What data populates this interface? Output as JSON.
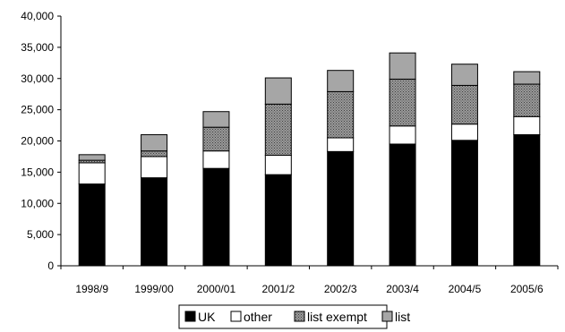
{
  "chart_data": {
    "type": "bar",
    "stacked": true,
    "categories": [
      "1998/9",
      "1999/00",
      "2000/01",
      "2001/2",
      "2002/3",
      "2003/4",
      "2004/5",
      "2005/6"
    ],
    "series": [
      {
        "name": "UK",
        "color": "#000000",
        "pattern": "solid",
        "values": [
          13100,
          14100,
          15600,
          14600,
          18300,
          19500,
          20100,
          21000
        ]
      },
      {
        "name": "other",
        "color": "#ffffff",
        "pattern": "solid",
        "values": [
          3400,
          3400,
          2800,
          3100,
          2200,
          2900,
          2600,
          2900
        ]
      },
      {
        "name": "list exempt",
        "color": "#808080",
        "pattern": "dots",
        "values": [
          400,
          900,
          3800,
          8200,
          7400,
          7500,
          6200,
          5200
        ]
      },
      {
        "name": "list",
        "color": "#a6a6a6",
        "pattern": "solid",
        "values": [
          900,
          2600,
          2500,
          4200,
          3400,
          4200,
          3400,
          2000
        ]
      }
    ],
    "ylim": [
      0,
      40000
    ],
    "yticks": [
      0,
      5000,
      10000,
      15000,
      20000,
      25000,
      30000,
      35000,
      40000
    ],
    "ytick_labels": [
      "0",
      "5,000",
      "10,000",
      "15,000",
      "20,000",
      "25,000",
      "30,000",
      "35,000",
      "40,000"
    ],
    "grid": false,
    "legend_position": "bottom"
  }
}
